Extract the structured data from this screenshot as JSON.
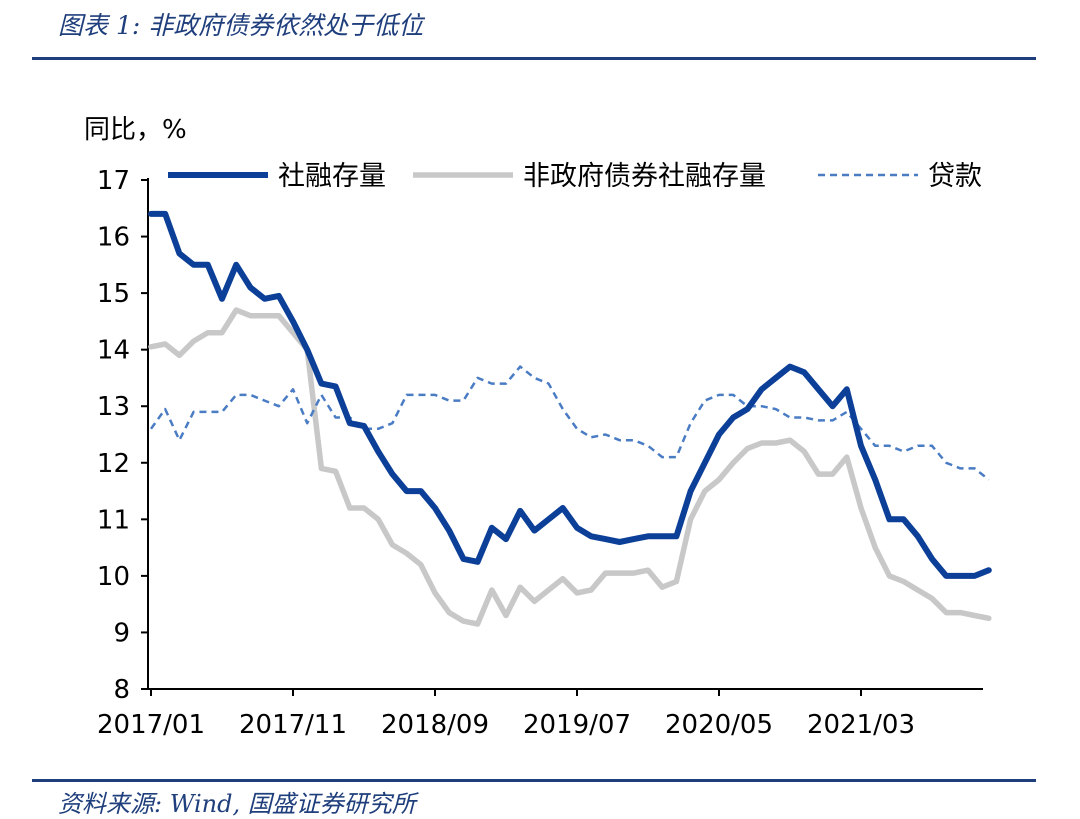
{
  "figure_title": "图表 1:  非政府债券依然处于低位",
  "source": "资料来源:  Wind,  国盛证券研究所",
  "chart_data": {
    "type": "line",
    "title": "",
    "ylabel": "同比，%",
    "xlabel": "",
    "ylim": [
      8,
      17
    ],
    "yticks": [
      8,
      9,
      10,
      11,
      12,
      13,
      14,
      15,
      16,
      17
    ],
    "xtick_labels": [
      "2017/01",
      "2017/11",
      "2018/09",
      "2019/07",
      "2020/05",
      "2021/03"
    ],
    "x": [
      "2017/01",
      "2017/02",
      "2017/03",
      "2017/04",
      "2017/05",
      "2017/06",
      "2017/07",
      "2017/08",
      "2017/09",
      "2017/10",
      "2017/11",
      "2017/12",
      "2018/01",
      "2018/02",
      "2018/03",
      "2018/04",
      "2018/05",
      "2018/06",
      "2018/07",
      "2018/08",
      "2018/09",
      "2018/10",
      "2018/11",
      "2018/12",
      "2019/01",
      "2019/02",
      "2019/03",
      "2019/04",
      "2019/05",
      "2019/06",
      "2019/07",
      "2019/08",
      "2019/09",
      "2019/10",
      "2019/11",
      "2019/12",
      "2020/01",
      "2020/02",
      "2020/03",
      "2020/04",
      "2020/05",
      "2020/06",
      "2020/07",
      "2020/08",
      "2020/09",
      "2020/10",
      "2020/11",
      "2020/12",
      "2021/01",
      "2021/02",
      "2021/03",
      "2021/04",
      "2021/05",
      "2021/06",
      "2021/07",
      "2021/08",
      "2021/09",
      "2021/10",
      "2021/11",
      "2021/12"
    ],
    "legend_position": "top",
    "grid": false,
    "series": [
      {
        "name": "社融存量",
        "color": "#0c3f97",
        "style": "solid-thick",
        "values": [
          16.4,
          16.4,
          15.7,
          15.5,
          15.5,
          14.9,
          15.5,
          15.1,
          14.9,
          14.95,
          14.5,
          14.0,
          13.4,
          13.35,
          12.7,
          12.65,
          12.2,
          11.8,
          11.5,
          11.5,
          11.2,
          10.8,
          10.3,
          10.25,
          10.85,
          10.65,
          11.15,
          10.8,
          11.0,
          11.2,
          10.85,
          10.7,
          10.65,
          10.6,
          10.65,
          10.7,
          10.7,
          10.7,
          11.5,
          12.0,
          12.5,
          12.8,
          12.95,
          13.3,
          13.5,
          13.7,
          13.6,
          13.3,
          13.0,
          13.3,
          12.3,
          11.7,
          11.0,
          11.0,
          10.7,
          10.3,
          10.0,
          10.0,
          10.0,
          10.1
        ]
      },
      {
        "name": "非政府债券社融存量",
        "color": "#c8c8c8",
        "style": "solid-thick",
        "values": [
          14.05,
          14.1,
          13.9,
          14.15,
          14.3,
          14.3,
          14.7,
          14.6,
          14.6,
          14.6,
          14.3,
          14.0,
          11.9,
          11.85,
          11.2,
          11.2,
          11.0,
          10.55,
          10.4,
          10.2,
          9.7,
          9.35,
          9.2,
          9.15,
          9.75,
          9.3,
          9.8,
          9.55,
          9.75,
          9.95,
          9.7,
          9.75,
          10.05,
          10.05,
          10.05,
          10.1,
          9.8,
          9.9,
          11.0,
          11.5,
          11.7,
          12.0,
          12.25,
          12.35,
          12.35,
          12.4,
          12.2,
          11.8,
          11.8,
          12.1,
          11.2,
          10.5,
          10.0,
          9.9,
          9.75,
          9.6,
          9.35,
          9.35,
          9.3,
          9.25
        ]
      },
      {
        "name": "贷款",
        "color": "#4a7cc4",
        "style": "dashed",
        "values": [
          12.6,
          12.95,
          12.4,
          12.9,
          12.9,
          12.9,
          13.2,
          13.2,
          13.1,
          13.0,
          13.3,
          12.7,
          13.2,
          12.8,
          12.8,
          12.6,
          12.6,
          12.7,
          13.2,
          13.2,
          13.2,
          13.1,
          13.1,
          13.5,
          13.4,
          13.4,
          13.7,
          13.5,
          13.4,
          12.95,
          12.6,
          12.45,
          12.5,
          12.4,
          12.4,
          12.3,
          12.1,
          12.1,
          12.7,
          13.1,
          13.2,
          13.2,
          13.0,
          13.0,
          12.95,
          12.8,
          12.8,
          12.75,
          12.75,
          12.9,
          12.6,
          12.3,
          12.3,
          12.2,
          12.3,
          12.3,
          12.0,
          11.9,
          11.9,
          11.7
        ]
      }
    ]
  }
}
